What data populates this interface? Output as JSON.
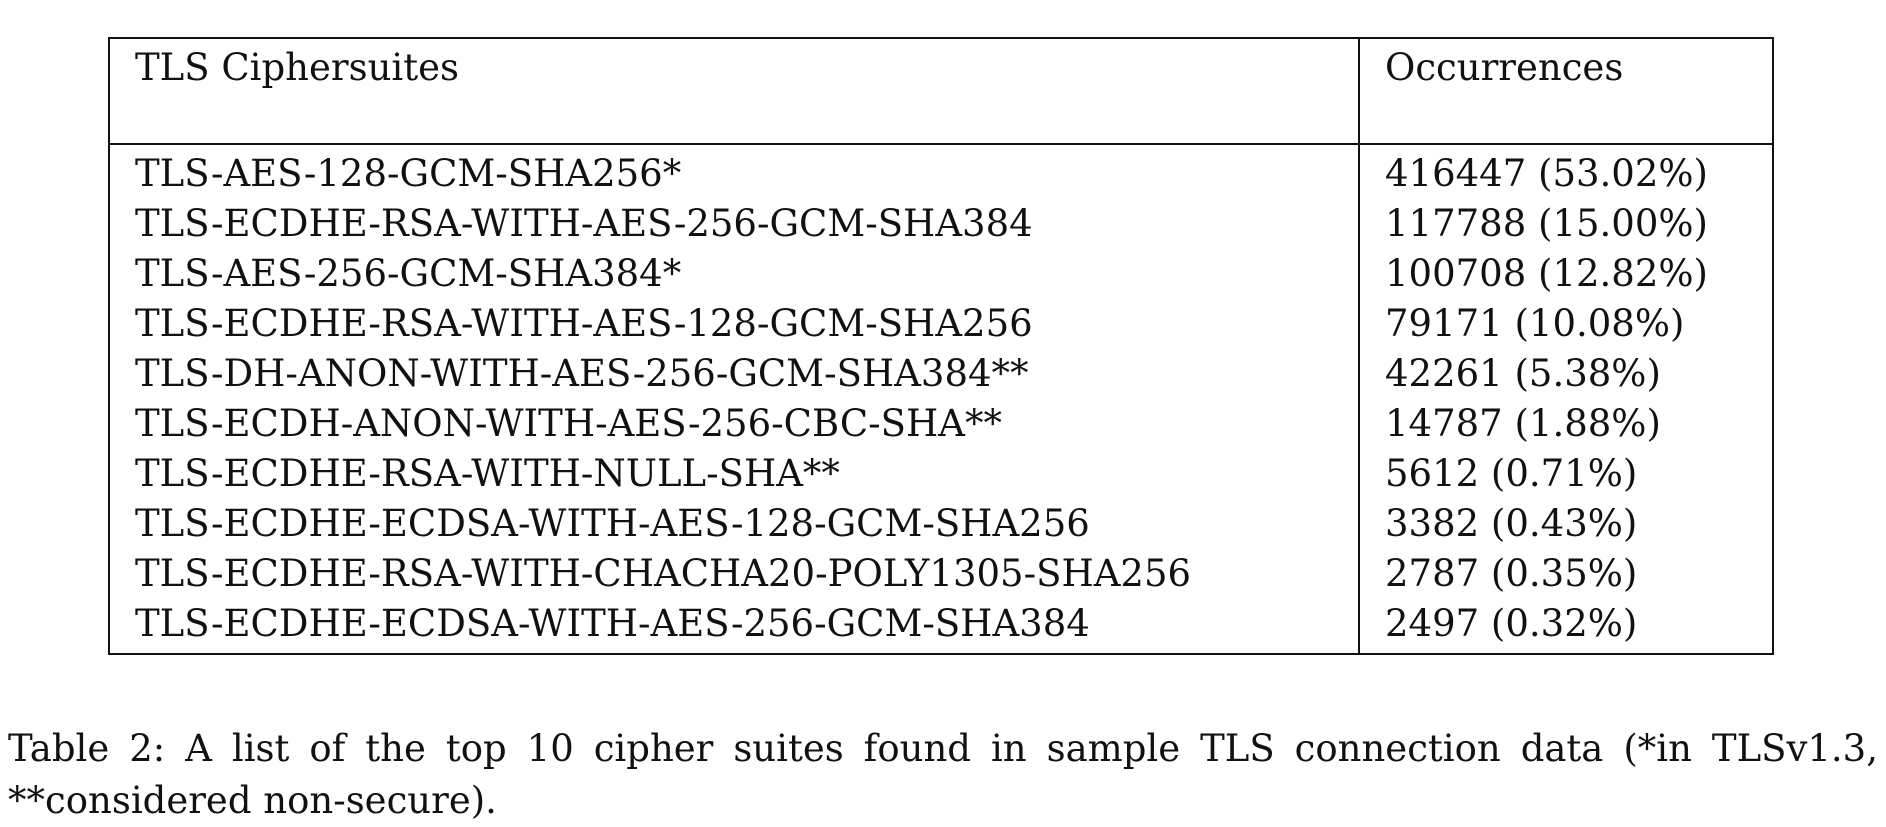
{
  "table": {
    "headers": [
      "TLS Ciphersuites",
      "Occurrences"
    ],
    "rows": [
      [
        "TLS-AES-128-GCM-SHA256*",
        "416447 (53.02%)"
      ],
      [
        "TLS-ECDHE-RSA-WITH-AES-256-GCM-SHA384",
        "117788 (15.00%)"
      ],
      [
        "TLS-AES-256-GCM-SHA384*",
        "100708 (12.82%)"
      ],
      [
        "TLS-ECDHE-RSA-WITH-AES-128-GCM-SHA256",
        "79171 (10.08%)"
      ],
      [
        "TLS-DH-ANON-WITH-AES-256-GCM-SHA384**",
        "42261 (5.38%)"
      ],
      [
        "TLS-ECDH-ANON-WITH-AES-256-CBC-SHA**",
        "14787 (1.88%)"
      ],
      [
        "TLS-ECDHE-RSA-WITH-NULL-SHA**",
        "5612 (0.71%)"
      ],
      [
        "TLS-ECDHE-ECDSA-WITH-AES-128-GCM-SHA256",
        "3382 (0.43%)"
      ],
      [
        "TLS-ECDHE-RSA-WITH-CHACHA20-POLY1305-SHA256",
        "2787 (0.35%)"
      ],
      [
        "TLS-ECDHE-ECDSA-WITH-AES-256-GCM-SHA384",
        "2497 (0.32%)"
      ]
    ]
  },
  "caption": "Table 2: A list of the top 10 cipher suites found in sample TLS connection data (*in TLSv1.3, **considered non-secure)."
}
